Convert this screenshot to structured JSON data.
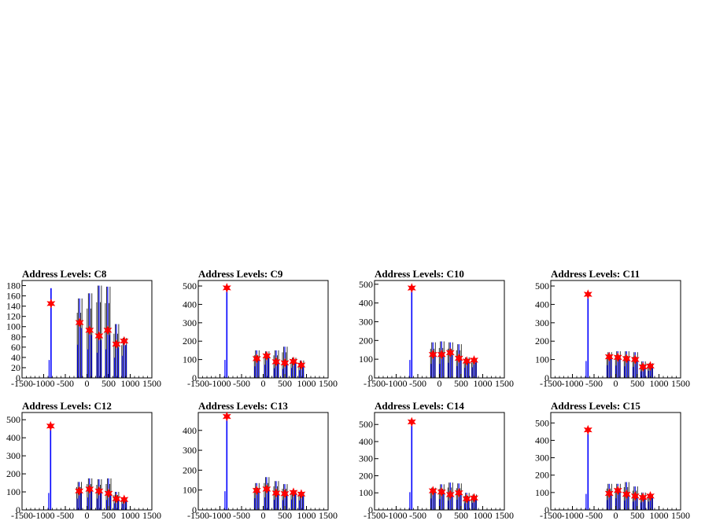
{
  "colors": {
    "histogram": "#0000ff",
    "spikes": "#000000",
    "marker": "#ff0000",
    "frame": "#000000"
  },
  "chart_data": [
    {
      "type": "histogram",
      "title": "Address Levels: C8",
      "xlim": [
        -1500,
        1500
      ],
      "xticks": [
        -1500,
        -1000,
        -500,
        0,
        500,
        1000,
        1500
      ],
      "ylim": [
        0,
        190
      ],
      "yticks": [
        0,
        20,
        40,
        60,
        80,
        100,
        120,
        140,
        160,
        180
      ],
      "peaks": [
        {
          "x": -830,
          "top": 175,
          "mark": 145
        },
        {
          "x": -170,
          "top": 155,
          "mark": 108
        },
        {
          "x": 60,
          "top": 165,
          "mark": 93
        },
        {
          "x": 280,
          "top": 180,
          "mark": 82
        },
        {
          "x": 480,
          "top": 178,
          "mark": 93
        },
        {
          "x": 680,
          "top": 105,
          "mark": 66
        },
        {
          "x": 860,
          "top": 78,
          "mark": 72
        }
      ]
    },
    {
      "type": "histogram",
      "title": "Address Levels: C9",
      "xlim": [
        -1500,
        1500
      ],
      "xticks": [
        -1500,
        -1000,
        -500,
        0,
        500,
        1000,
        1500
      ],
      "ylim": [
        0,
        530
      ],
      "yticks": [
        0,
        100,
        200,
        300,
        400,
        500
      ],
      "peaks": [
        {
          "x": -840,
          "top": 490,
          "mark": 490
        },
        {
          "x": -150,
          "top": 150,
          "mark": 105
        },
        {
          "x": 80,
          "top": 145,
          "mark": 120
        },
        {
          "x": 300,
          "top": 150,
          "mark": 88
        },
        {
          "x": 500,
          "top": 170,
          "mark": 82
        },
        {
          "x": 700,
          "top": 110,
          "mark": 90
        },
        {
          "x": 880,
          "top": 95,
          "mark": 70
        }
      ]
    },
    {
      "type": "histogram",
      "title": "Address Levels: C10",
      "xlim": [
        -1500,
        1500
      ],
      "xticks": [
        -1500,
        -1000,
        -500,
        0,
        500,
        1000,
        1500
      ],
      "ylim": [
        0,
        520
      ],
      "yticks": [
        0,
        100,
        200,
        300,
        400,
        500
      ],
      "peaks": [
        {
          "x": -640,
          "top": 480,
          "mark": 480
        },
        {
          "x": -150,
          "top": 190,
          "mark": 125
        },
        {
          "x": 50,
          "top": 195,
          "mark": 125
        },
        {
          "x": 250,
          "top": 190,
          "mark": 135
        },
        {
          "x": 450,
          "top": 180,
          "mark": 105
        },
        {
          "x": 630,
          "top": 110,
          "mark": 90
        },
        {
          "x": 800,
          "top": 100,
          "mark": 95
        }
      ]
    },
    {
      "type": "histogram",
      "title": "Address Levels: C11",
      "xlim": [
        -1500,
        1500
      ],
      "xticks": [
        -1500,
        -1000,
        -500,
        0,
        500,
        1000,
        1500
      ],
      "ylim": [
        0,
        530
      ],
      "yticks": [
        0,
        100,
        200,
        300,
        400,
        500
      ],
      "peaks": [
        {
          "x": -640,
          "top": 460,
          "mark": 455
        },
        {
          "x": -150,
          "top": 140,
          "mark": 115
        },
        {
          "x": 50,
          "top": 145,
          "mark": 112
        },
        {
          "x": 250,
          "top": 145,
          "mark": 105
        },
        {
          "x": 450,
          "top": 140,
          "mark": 100
        },
        {
          "x": 630,
          "top": 90,
          "mark": 60
        },
        {
          "x": 800,
          "top": 80,
          "mark": 65
        }
      ]
    },
    {
      "type": "histogram",
      "title": "Address Levels: C12",
      "xlim": [
        -1500,
        1500
      ],
      "xticks": [
        -1500,
        -1000,
        -500,
        0,
        500,
        1000,
        1500
      ],
      "ylim": [
        0,
        540
      ],
      "yticks": [
        0,
        100,
        200,
        300,
        400,
        500
      ],
      "peaks": [
        {
          "x": -840,
          "top": 470,
          "mark": 465
        },
        {
          "x": -180,
          "top": 155,
          "mark": 105
        },
        {
          "x": 60,
          "top": 175,
          "mark": 115
        },
        {
          "x": 280,
          "top": 170,
          "mark": 105
        },
        {
          "x": 500,
          "top": 175,
          "mark": 92
        },
        {
          "x": 680,
          "top": 100,
          "mark": 62
        },
        {
          "x": 860,
          "top": 70,
          "mark": 58
        }
      ]
    },
    {
      "type": "histogram",
      "title": "Address Levels: C13",
      "xlim": [
        -1500,
        1500
      ],
      "xticks": [
        -1500,
        -1000,
        -500,
        0,
        500,
        1000,
        1500
      ],
      "ylim": [
        0,
        490
      ],
      "yticks": [
        0,
        100,
        200,
        300,
        400
      ],
      "peaks": [
        {
          "x": -840,
          "top": 470,
          "mark": 470
        },
        {
          "x": -150,
          "top": 135,
          "mark": 98
        },
        {
          "x": 80,
          "top": 165,
          "mark": 105
        },
        {
          "x": 300,
          "top": 145,
          "mark": 85
        },
        {
          "x": 500,
          "top": 130,
          "mark": 82
        },
        {
          "x": 700,
          "top": 100,
          "mark": 88
        },
        {
          "x": 880,
          "top": 90,
          "mark": 80
        }
      ]
    },
    {
      "type": "histogram",
      "title": "Address Levels: C14",
      "xlim": [
        -1500,
        1500
      ],
      "xticks": [
        -1500,
        -1000,
        -500,
        0,
        500,
        1000,
        1500
      ],
      "ylim": [
        0,
        570
      ],
      "yticks": [
        0,
        100,
        200,
        300,
        400,
        500
      ],
      "peaks": [
        {
          "x": -640,
          "top": 520,
          "mark": 515
        },
        {
          "x": -150,
          "top": 130,
          "mark": 112
        },
        {
          "x": 50,
          "top": 150,
          "mark": 105
        },
        {
          "x": 250,
          "top": 160,
          "mark": 90
        },
        {
          "x": 450,
          "top": 155,
          "mark": 100
        },
        {
          "x": 630,
          "top": 100,
          "mark": 65
        },
        {
          "x": 800,
          "top": 90,
          "mark": 70
        }
      ]
    },
    {
      "type": "histogram",
      "title": "Address Levels: C15",
      "xlim": [
        -1500,
        1500
      ],
      "xticks": [
        -1500,
        -1000,
        -500,
        0,
        500,
        1000,
        1500
      ],
      "ylim": [
        0,
        560
      ],
      "yticks": [
        0,
        100,
        200,
        300,
        400,
        500
      ],
      "peaks": [
        {
          "x": -640,
          "top": 460,
          "mark": 460
        },
        {
          "x": -150,
          "top": 150,
          "mark": 95
        },
        {
          "x": 50,
          "top": 150,
          "mark": 112
        },
        {
          "x": 250,
          "top": 160,
          "mark": 90
        },
        {
          "x": 450,
          "top": 135,
          "mark": 80
        },
        {
          "x": 630,
          "top": 100,
          "mark": 72
        },
        {
          "x": 800,
          "top": 90,
          "mark": 80
        }
      ]
    }
  ]
}
